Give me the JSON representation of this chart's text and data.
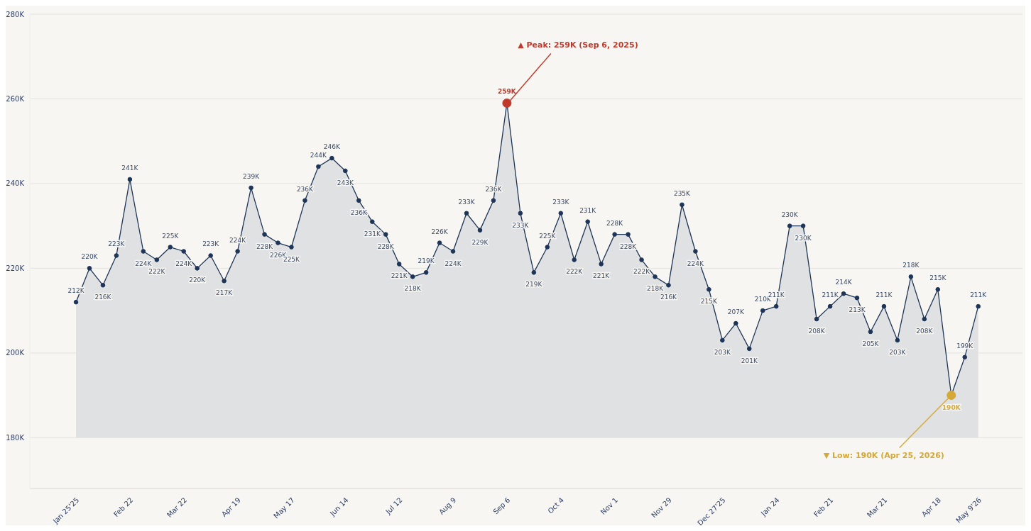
{
  "chart_data": {
    "type": "area",
    "x": [
      "2025-01-25",
      "2025-02-01",
      "2025-02-08",
      "2025-02-15",
      "2025-02-22",
      "2025-03-01",
      "2025-03-08",
      "2025-03-15",
      "2025-03-22",
      "2025-03-29",
      "2025-04-05",
      "2025-04-12",
      "2025-04-19",
      "2025-04-26",
      "2025-05-03",
      "2025-05-10",
      "2025-05-17",
      "2025-05-24",
      "2025-05-31",
      "2025-06-07",
      "2025-06-14",
      "2025-06-21",
      "2025-06-28",
      "2025-07-05",
      "2025-07-12",
      "2025-07-19",
      "2025-07-26",
      "2025-08-02",
      "2025-08-09",
      "2025-08-16",
      "2025-08-23",
      "2025-08-30",
      "2025-09-06",
      "2025-09-13",
      "2025-09-20",
      "2025-09-27",
      "2025-10-04",
      "2025-10-11",
      "2025-10-18",
      "2025-10-25",
      "2025-11-01",
      "2025-11-08",
      "2025-11-15",
      "2025-11-22",
      "2025-11-29",
      "2025-12-06",
      "2025-12-13",
      "2025-12-20",
      "2025-12-27",
      "2026-01-03",
      "2026-01-10",
      "2026-01-17",
      "2026-01-24",
      "2026-01-31",
      "2026-02-07",
      "2026-02-14",
      "2026-02-21",
      "2026-02-28",
      "2026-03-07",
      "2026-03-14",
      "2026-03-21",
      "2026-03-28",
      "2026-04-04",
      "2026-04-11",
      "2026-04-18",
      "2026-04-25",
      "2026-05-02",
      "2026-05-09"
    ],
    "series": [
      {
        "color": "#1e3557",
        "values": [
          212000,
          220000,
          216000,
          223000,
          241000,
          224000,
          222000,
          225000,
          224000,
          220000,
          223000,
          217000,
          224000,
          239000,
          228000,
          226000,
          225000,
          236000,
          244000,
          246000,
          243000,
          236000,
          231000,
          228000,
          221000,
          218000,
          219000,
          226000,
          224000,
          233000,
          229000,
          236000,
          259000,
          233000,
          219000,
          225000,
          233000,
          222000,
          231000,
          221000,
          228000,
          228000,
          222000,
          218000,
          216000,
          235000,
          224000,
          215000,
          203000,
          207000,
          201000,
          210000,
          211000,
          230000,
          230000,
          208000,
          211000,
          214000,
          213000,
          205000,
          211000,
          203000,
          218000,
          208000,
          215000,
          190000,
          199000,
          211000
        ],
        "value_labels": [
          "212K",
          "220K",
          "216K",
          "223K",
          "241K",
          "224K",
          "222K",
          "225K",
          "224K",
          "220K",
          "223K",
          "217K",
          "224K",
          "239K",
          "228K",
          "226K",
          "225K",
          "236K",
          "244K",
          "246K",
          "243K",
          "236K",
          "231K",
          "228K",
          "221K",
          "218K",
          "219K",
          "226K",
          "224K",
          "233K",
          "229K",
          "236K",
          "259K",
          "233K",
          "219K",
          "225K",
          "233K",
          "222K",
          "231K",
          "221K",
          "228K",
          "228K",
          "222K",
          "218K",
          "216K",
          "235K",
          "224K",
          "215K",
          "203K",
          "207K",
          "201K",
          "210K",
          "211K",
          "230K",
          "230K",
          "208K",
          "211K",
          "214K",
          "213K",
          "205K",
          "211K",
          "203K",
          "218K",
          "208K",
          "215K",
          "190K",
          "199K",
          "211K"
        ],
        "colors": [
          "#1e3557",
          "#1e3557",
          "#1e3557",
          "#1e3557",
          "#1e3557",
          "#1e3557",
          "#1e3557",
          "#1e3557",
          "#1e3557",
          "#1e3557",
          "#1e3557",
          "#1e3557",
          "#1e3557",
          "#1e3557",
          "#1e3557",
          "#1e3557",
          "#1e3557",
          "#1e3557",
          "#1e3557",
          "#1e3557",
          "#1e3557",
          "#1e3557",
          "#1e3557",
          "#1e3557",
          "#1e3557",
          "#1e3557",
          "#1e3557",
          "#1e3557",
          "#1e3557",
          "#1e3557",
          "#1e3557",
          "#1e3557",
          "#c0392b",
          "#1e3557",
          "#1e3557",
          "#1e3557",
          "#1e3557",
          "#1e3557",
          "#1e3557",
          "#1e3557",
          "#1e3557",
          "#1e3557",
          "#1e3557",
          "#1e3557",
          "#1e3557",
          "#1e3557",
          "#1e3557",
          "#1e3557",
          "#1e3557",
          "#1e3557",
          "#1e3557",
          "#1e3557",
          "#1e3557",
          "#1e3557",
          "#1e3557",
          "#1e3557",
          "#1e3557",
          "#1e3557",
          "#1e3557",
          "#1e3557",
          "#1e3557",
          "#1e3557",
          "#1e3557",
          "#1e3557",
          "#1e3557",
          "#d4a937",
          "#1e3557",
          "#1e3557"
        ]
      }
    ],
    "xlim": [
      "2025-01-01",
      "2026-06-01"
    ],
    "xticks": [
      {
        "value": "2025-01-25",
        "label": "Jan 25'25"
      },
      {
        "value": "2025-02-22",
        "label": "Feb 22"
      },
      {
        "value": "2025-03-22",
        "label": "Mar 22"
      },
      {
        "value": "2025-04-19",
        "label": "Apr 19"
      },
      {
        "value": "2025-05-17",
        "label": "May 17"
      },
      {
        "value": "2025-06-14",
        "label": "Jun 14"
      },
      {
        "value": "2025-07-12",
        "label": "Jul 12"
      },
      {
        "value": "2025-08-09",
        "label": "Aug 9"
      },
      {
        "value": "2025-09-06",
        "label": "Sep 6"
      },
      {
        "value": "2025-10-04",
        "label": "Oct 4"
      },
      {
        "value": "2025-11-01",
        "label": "Nov 1"
      },
      {
        "value": "2025-11-29",
        "label": "Nov 29"
      },
      {
        "value": "2025-12-27",
        "label": "Dec 27'25"
      },
      {
        "value": "2026-01-24",
        "label": "Jan 24"
      },
      {
        "value": "2026-02-21",
        "label": "Feb 21"
      },
      {
        "value": "2026-03-21",
        "label": "Mar 21"
      },
      {
        "value": "2026-04-18",
        "label": "Apr 18"
      },
      {
        "value": "2026-05-09",
        "label": "May 9'26"
      }
    ],
    "ylim": [
      168000,
      280000
    ],
    "yticks": [
      {
        "value": 180000,
        "label": "180K"
      },
      {
        "value": 200000,
        "label": "200K"
      },
      {
        "value": 220000,
        "label": "220K"
      },
      {
        "value": 240000,
        "label": "240K"
      },
      {
        "value": 260000,
        "label": "260K"
      },
      {
        "value": 280000,
        "label": "280K"
      }
    ],
    "grid": "y",
    "marker": "circle",
    "line_style": "solid",
    "annotations": [
      {
        "text": "▲ Peak: 259K  (Sep 6, 2025)",
        "x": "2025-09-06",
        "y": 259000
      },
      {
        "text": "▼ Low: 190K  (Apr 25, 2026)",
        "x": "2026-04-25",
        "y": 190000
      }
    ]
  }
}
